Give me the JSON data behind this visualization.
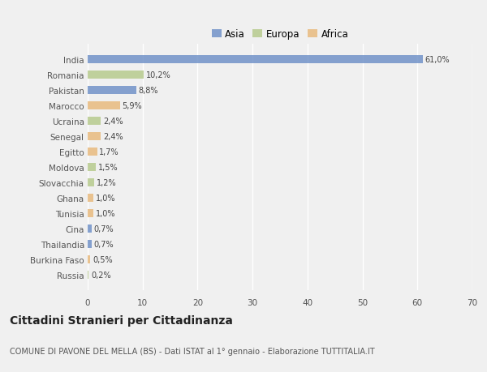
{
  "categories": [
    "India",
    "Romania",
    "Pakistan",
    "Marocco",
    "Ucraina",
    "Senegal",
    "Egitto",
    "Moldova",
    "Slovacchia",
    "Ghana",
    "Tunisia",
    "Cina",
    "Thailandia",
    "Burkina Faso",
    "Russia"
  ],
  "values": [
    61.0,
    10.2,
    8.8,
    5.9,
    2.4,
    2.4,
    1.7,
    1.5,
    1.2,
    1.0,
    1.0,
    0.7,
    0.7,
    0.5,
    0.2
  ],
  "labels": [
    "61,0%",
    "10,2%",
    "8,8%",
    "5,9%",
    "2,4%",
    "2,4%",
    "1,7%",
    "1,5%",
    "1,2%",
    "1,0%",
    "1,0%",
    "0,7%",
    "0,7%",
    "0,5%",
    "0,2%"
  ],
  "continents": [
    "Asia",
    "Europa",
    "Asia",
    "Africa",
    "Europa",
    "Africa",
    "Africa",
    "Europa",
    "Europa",
    "Africa",
    "Africa",
    "Asia",
    "Asia",
    "Africa",
    "Europa"
  ],
  "colors": {
    "Asia": "#6d8fc7",
    "Europa": "#b5c98a",
    "Africa": "#e8b87a"
  },
  "title": "Cittadini Stranieri per Cittadinanza",
  "subtitle": "COMUNE DI PAVONE DEL MELLA (BS) - Dati ISTAT al 1° gennaio - Elaborazione TUTTITALIA.IT",
  "xlim": [
    0,
    70
  ],
  "xticks": [
    0,
    10,
    20,
    30,
    40,
    50,
    60,
    70
  ],
  "background_color": "#f0f0f0",
  "grid_color": "#ffffff",
  "bar_height": 0.55
}
